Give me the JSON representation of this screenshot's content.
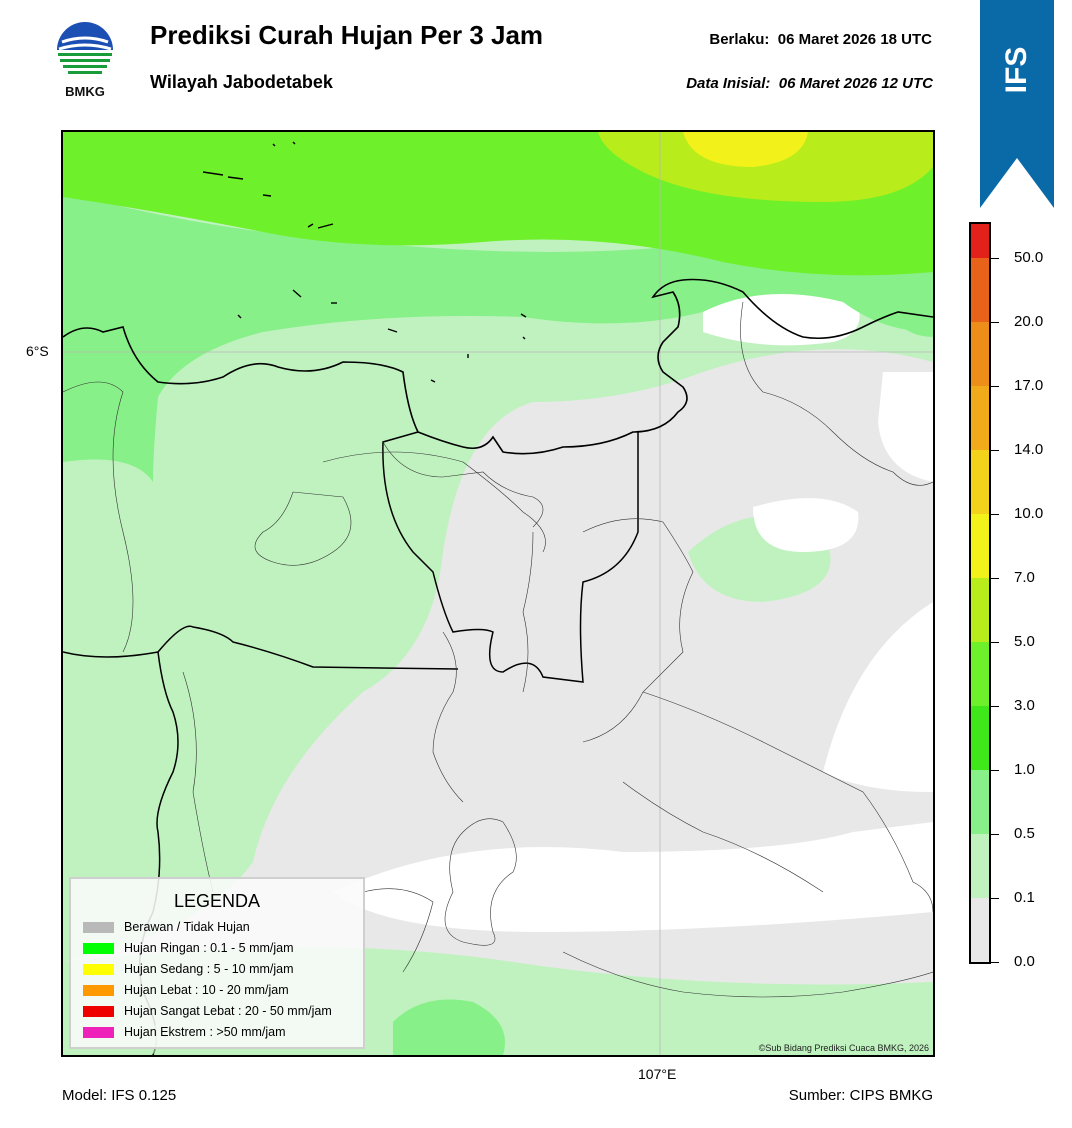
{
  "header": {
    "title": "Prediksi Curah Hujan Per 3 Jam",
    "subtitle": "Wilayah Jabodetabek",
    "valid_label": "Berlaku:",
    "valid_value": "06 Maret 2026 18 UTC",
    "init_label": "Data Inisial:",
    "init_value": "06 Maret 2026 12 UTC"
  },
  "logo": {
    "text": "BMKG",
    "icon": "bmkg-logo"
  },
  "badge": {
    "text": "IFS",
    "color": "#0a6aa8"
  },
  "map": {
    "lat_label": "6°S",
    "lon_label": "107°E",
    "copyright": "©Sub Bidang Prediksi Cuaca BMKG, 2026"
  },
  "legend": {
    "title": "LEGENDA",
    "items": [
      {
        "label": "Berawan / Tidak Hujan",
        "color": "#b9b9b9"
      },
      {
        "label": "Hujan Ringan : 0.1 - 5 mm/jam",
        "color": "#00ff00"
      },
      {
        "label": "Hujan Sedang : 5 - 10 mm/jam",
        "color": "#ffff00"
      },
      {
        "label": "Hujan Lebat : 10 - 20 mm/jam",
        "color": "#ff9900"
      },
      {
        "label": "Hujan Sangat Lebat : 20 - 50 mm/jam",
        "color": "#ee0000"
      },
      {
        "label": "Hujan Ekstrem : >50 mm/jam",
        "color": "#ee22bb"
      }
    ]
  },
  "colorbar": {
    "segments": [
      "#e8e8e8",
      "#bff2bf",
      "#88f088",
      "#3ee81a",
      "#6ef02a",
      "#b8ec1a",
      "#f2f21a",
      "#f2d21a",
      "#f0aa1a",
      "#ee8e1a",
      "#e8621a",
      "#e2221a",
      "#e61ab8"
    ],
    "labels": [
      "0.0",
      "0.1",
      "0.5",
      "1.0",
      "3.0",
      "5.0",
      "7.0",
      "10.0",
      "14.0",
      "17.0",
      "20.0",
      "50.0"
    ]
  },
  "footer": {
    "model": "Model: IFS 0.125",
    "source": "Sumber: CIPS BMKG"
  }
}
